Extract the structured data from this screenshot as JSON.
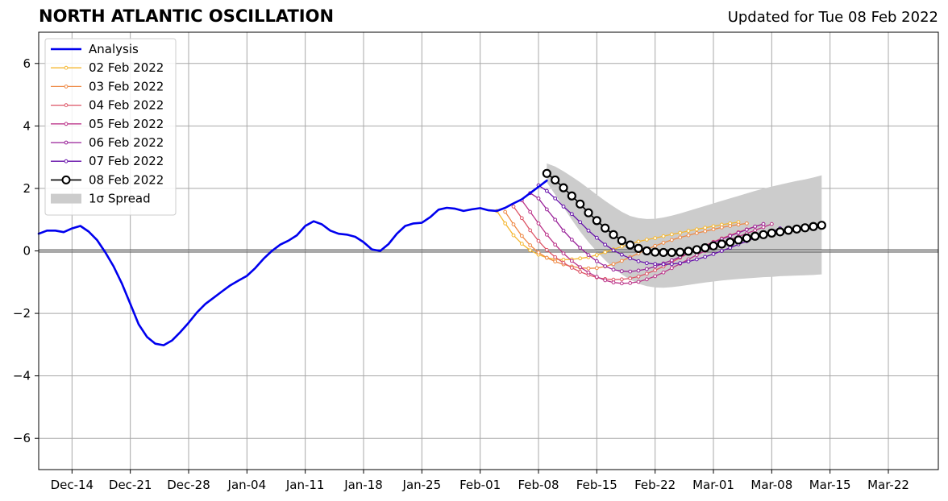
{
  "title": "NORTH ATLANTIC OSCILLATION",
  "subtitle": "Updated for Tue 08 Feb 2022",
  "chart_data": {
    "type": "line",
    "title": "NORTH ATLANTIC OSCILLATION",
    "xlim": [
      "2021-12-10",
      "2022-03-28"
    ],
    "ylim": [
      -7,
      7
    ],
    "grid": true,
    "legend_position": "upper-left",
    "x_ticks": [
      {
        "date": "2021-12-14",
        "label": "Dec-14"
      },
      {
        "date": "2021-12-21",
        "label": "Dec-21"
      },
      {
        "date": "2021-12-28",
        "label": "Dec-28"
      },
      {
        "date": "2022-01-04",
        "label": "Jan-04"
      },
      {
        "date": "2022-01-11",
        "label": "Jan-11"
      },
      {
        "date": "2022-01-18",
        "label": "Jan-18"
      },
      {
        "date": "2022-01-25",
        "label": "Jan-25"
      },
      {
        "date": "2022-02-01",
        "label": "Feb-01"
      },
      {
        "date": "2022-02-08",
        "label": "Feb-08"
      },
      {
        "date": "2022-02-15",
        "label": "Feb-15"
      },
      {
        "date": "2022-02-22",
        "label": "Feb-22"
      },
      {
        "date": "2022-03-01",
        "label": "Mar-01"
      },
      {
        "date": "2022-03-08",
        "label": "Mar-08"
      },
      {
        "date": "2022-03-15",
        "label": "Mar-15"
      },
      {
        "date": "2022-03-22",
        "label": "Mar-22"
      }
    ],
    "y_ticks": [
      {
        "value": 6,
        "label": "6"
      },
      {
        "value": 4,
        "label": "4"
      },
      {
        "value": 2,
        "label": "2"
      },
      {
        "value": 0,
        "label": "0"
      },
      {
        "value": -2,
        "label": "−2"
      },
      {
        "value": -4,
        "label": "−4"
      },
      {
        "value": -6,
        "label": "−6"
      }
    ],
    "analysis": {
      "name": "Analysis",
      "color": "#0000ee",
      "start": "2021-12-10",
      "values": [
        0.55,
        0.65,
        0.65,
        0.6,
        0.72,
        0.8,
        0.62,
        0.35,
        -0.05,
        -0.5,
        -1.05,
        -1.7,
        -2.35,
        -2.75,
        -2.97,
        -3.02,
        -2.87,
        -2.6,
        -2.3,
        -1.97,
        -1.7,
        -1.5,
        -1.3,
        -1.1,
        -0.95,
        -0.8,
        -0.55,
        -0.25,
        0.0,
        0.2,
        0.33,
        0.5,
        0.8,
        0.95,
        0.85,
        0.65,
        0.55,
        0.52,
        0.45,
        0.28,
        0.05,
        0.0,
        0.22,
        0.55,
        0.8,
        0.88,
        0.9,
        1.08,
        1.32,
        1.38,
        1.35,
        1.28,
        1.33,
        1.37,
        1.3,
        1.28,
        1.38,
        1.52,
        1.65,
        1.85,
        2.05,
        2.25
      ]
    },
    "forecasts": [
      {
        "name": "02 Feb 2022",
        "color": "#f5b730",
        "start": "2022-02-03",
        "values": [
          1.28,
          0.88,
          0.5,
          0.23,
          0.02,
          -0.12,
          -0.22,
          -0.27,
          -0.28,
          -0.27,
          -0.24,
          -0.2,
          -0.13,
          -0.04,
          0.05,
          0.14,
          0.22,
          0.3,
          0.36,
          0.41,
          0.47,
          0.53,
          0.58,
          0.64,
          0.69,
          0.74,
          0.79,
          0.84,
          0.88,
          0.92
        ]
      },
      {
        "name": "03 Feb 2022",
        "color": "#ee8844",
        "start": "2022-02-04",
        "values": [
          1.25,
          0.85,
          0.48,
          0.18,
          -0.05,
          -0.22,
          -0.34,
          -0.43,
          -0.5,
          -0.54,
          -0.56,
          -0.55,
          -0.5,
          -0.42,
          -0.32,
          -0.2,
          -0.08,
          0.05,
          0.16,
          0.26,
          0.35,
          0.43,
          0.5,
          0.57,
          0.63,
          0.69,
          0.75,
          0.8,
          0.84,
          0.88
        ]
      },
      {
        "name": "04 Feb 2022",
        "color": "#dd5566",
        "start": "2022-02-05",
        "values": [
          1.42,
          1.05,
          0.66,
          0.32,
          0.03,
          -0.2,
          -0.38,
          -0.54,
          -0.67,
          -0.77,
          -0.85,
          -0.9,
          -0.92,
          -0.91,
          -0.88,
          -0.82,
          -0.73,
          -0.62,
          -0.5,
          -0.36,
          -0.22,
          -0.08,
          0.05,
          0.17,
          0.29,
          0.4,
          0.5,
          0.6,
          0.69,
          0.78,
          0.86
        ]
      },
      {
        "name": "05 Feb 2022",
        "color": "#bb3388",
        "start": "2022-02-06",
        "values": [
          1.62,
          1.25,
          0.88,
          0.52,
          0.2,
          -0.08,
          -0.32,
          -0.52,
          -0.69,
          -0.83,
          -0.94,
          -1.01,
          -1.04,
          -1.03,
          -0.99,
          -0.91,
          -0.81,
          -0.69,
          -0.55,
          -0.41,
          -0.27,
          -0.13,
          0.0,
          0.12,
          0.24,
          0.35,
          0.46,
          0.56,
          0.66,
          0.76,
          0.86
        ]
      },
      {
        "name": "06 Feb 2022",
        "color": "#992299",
        "start": "2022-02-07",
        "values": [
          1.85,
          1.68,
          1.33,
          1.0,
          0.65,
          0.36,
          0.1,
          -0.13,
          -0.33,
          -0.49,
          -0.6,
          -0.65,
          -0.66,
          -0.63,
          -0.58,
          -0.5,
          -0.4,
          -0.3,
          -0.19,
          -0.07,
          0.05,
          0.16,
          0.27,
          0.38,
          0.48,
          0.58,
          0.68,
          0.78,
          0.86
        ]
      },
      {
        "name": "07 Feb 2022",
        "color": "#6611aa",
        "start": "2022-02-08",
        "values": [
          2.1,
          1.92,
          1.68,
          1.42,
          1.18,
          0.92,
          0.65,
          0.42,
          0.2,
          0.02,
          -0.12,
          -0.24,
          -0.33,
          -0.39,
          -0.42,
          -0.43,
          -0.42,
          -0.39,
          -0.34,
          -0.27,
          -0.19,
          -0.1,
          0.0,
          0.1,
          0.21,
          0.31,
          0.42,
          0.52,
          0.62,
          0.72
        ]
      }
    ],
    "latest": {
      "name": "08 Feb 2022",
      "color": "#000000",
      "start": "2022-02-09",
      "values": [
        2.48,
        2.27,
        2.02,
        1.76,
        1.5,
        1.22,
        0.97,
        0.73,
        0.52,
        0.33,
        0.19,
        0.08,
        0.0,
        -0.04,
        -0.05,
        -0.05,
        -0.04,
        -0.01,
        0.04,
        0.1,
        0.16,
        0.22,
        0.28,
        0.35,
        0.41,
        0.47,
        0.52,
        0.57,
        0.61,
        0.66,
        0.7,
        0.74,
        0.78,
        0.82
      ]
    },
    "spread": {
      "name": "1σ Spread",
      "color": "#cccccc",
      "start": "2022-02-09",
      "upper": [
        2.8,
        2.7,
        2.55,
        2.38,
        2.2,
        2.0,
        1.8,
        1.6,
        1.42,
        1.25,
        1.12,
        1.05,
        1.02,
        1.03,
        1.07,
        1.13,
        1.2,
        1.28,
        1.36,
        1.44,
        1.52,
        1.6,
        1.68,
        1.76,
        1.84,
        1.92,
        1.99,
        2.06,
        2.12,
        2.18,
        2.24,
        2.29,
        2.35,
        2.42
      ],
      "lower": [
        2.2,
        1.8,
        1.4,
        1.0,
        0.62,
        0.28,
        -0.02,
        -0.3,
        -0.55,
        -0.75,
        -0.92,
        -1.05,
        -1.13,
        -1.17,
        -1.18,
        -1.16,
        -1.13,
        -1.09,
        -1.05,
        -1.01,
        -0.98,
        -0.95,
        -0.92,
        -0.9,
        -0.88,
        -0.86,
        -0.84,
        -0.83,
        -0.81,
        -0.8,
        -0.79,
        -0.78,
        -0.77,
        -0.75
      ]
    }
  }
}
